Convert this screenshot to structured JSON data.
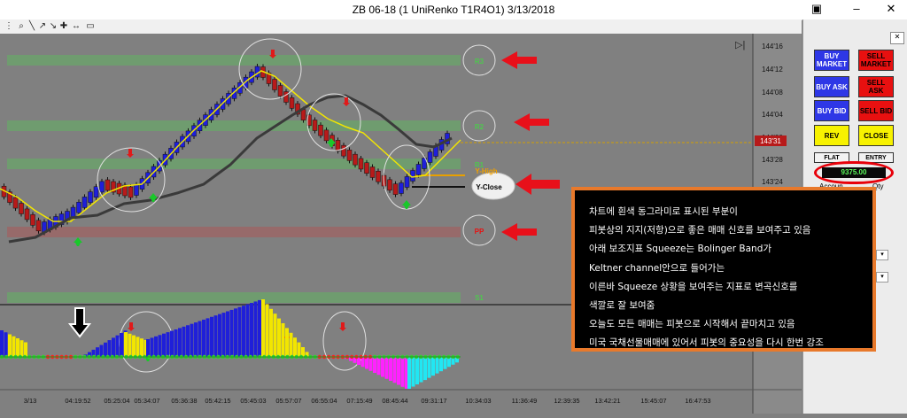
{
  "window": {
    "title": "ZB 06-18 (1 UniRenko T1R4O1)  3/13/2018"
  },
  "price_axis": {
    "ticks": [
      "144'16",
      "144'12",
      "144'08",
      "144'04",
      "144'00",
      "143'28",
      "143'24"
    ],
    "current_price": "143'31"
  },
  "levels": {
    "r3": "R3",
    "r2": "R2",
    "r1": "R1",
    "y_high": "Y-High",
    "y_close": "Y-Close",
    "pp": "PP",
    "s1": "S1"
  },
  "time_axis": {
    "labels": [
      "3/13",
      "04:19:52",
      "05:25:04",
      "05:34:07",
      "05:36:38",
      "05:42:15",
      "05:45:03",
      "05:57:07",
      "06:55:04",
      "07:15:49",
      "08:45:44",
      "09:31:17",
      "10:34:03",
      "11:36:49",
      "12:39:35",
      "13:42:21",
      "15:45:07",
      "16:47:53"
    ]
  },
  "trade_panel": {
    "buy_market": "BUY MARKET",
    "sell_market": "SELL MARKET",
    "buy_ask": "BUY ASK",
    "sell_ask": "SELL ASK",
    "buy_bid": "BUY BID",
    "sell_bid": "SELL BID",
    "rev": "REV",
    "close": "CLOSE",
    "flat": "FLAT",
    "entry": "ENTRY",
    "balance": "9375.00",
    "account": "Accoun",
    "qty": "Qty"
  },
  "annotation": {
    "lines": [
      "차트에 흰색 동그라미로 표시된 부분이",
      "피봇상의 지지(저항)으로   좋은 매매 신호를 보여주고 있음",
      "아래 보조지표 Squeeze는  Bolinger Band가",
      " Keltner channel안으로 들어가는",
      " 이른바 Squeeze 상황을 보여주는 지표로 변곡신호를",
      " 색깔로 잘 보여줌",
      " 오늘도 모든 매매는 피봇으로 시작해서 끝마치고 있음",
      " 미국 국채선물매매에 있어서 피봇의 중요성을 다시 한번 강조"
    ]
  },
  "colors": {
    "bull": "#1f1fd9",
    "bear": "#b81a1a",
    "accent_red": "#e8000a",
    "annot_border": "#e8792b",
    "pivot_green": "#45a845",
    "pivot_red": "#9c5555"
  }
}
